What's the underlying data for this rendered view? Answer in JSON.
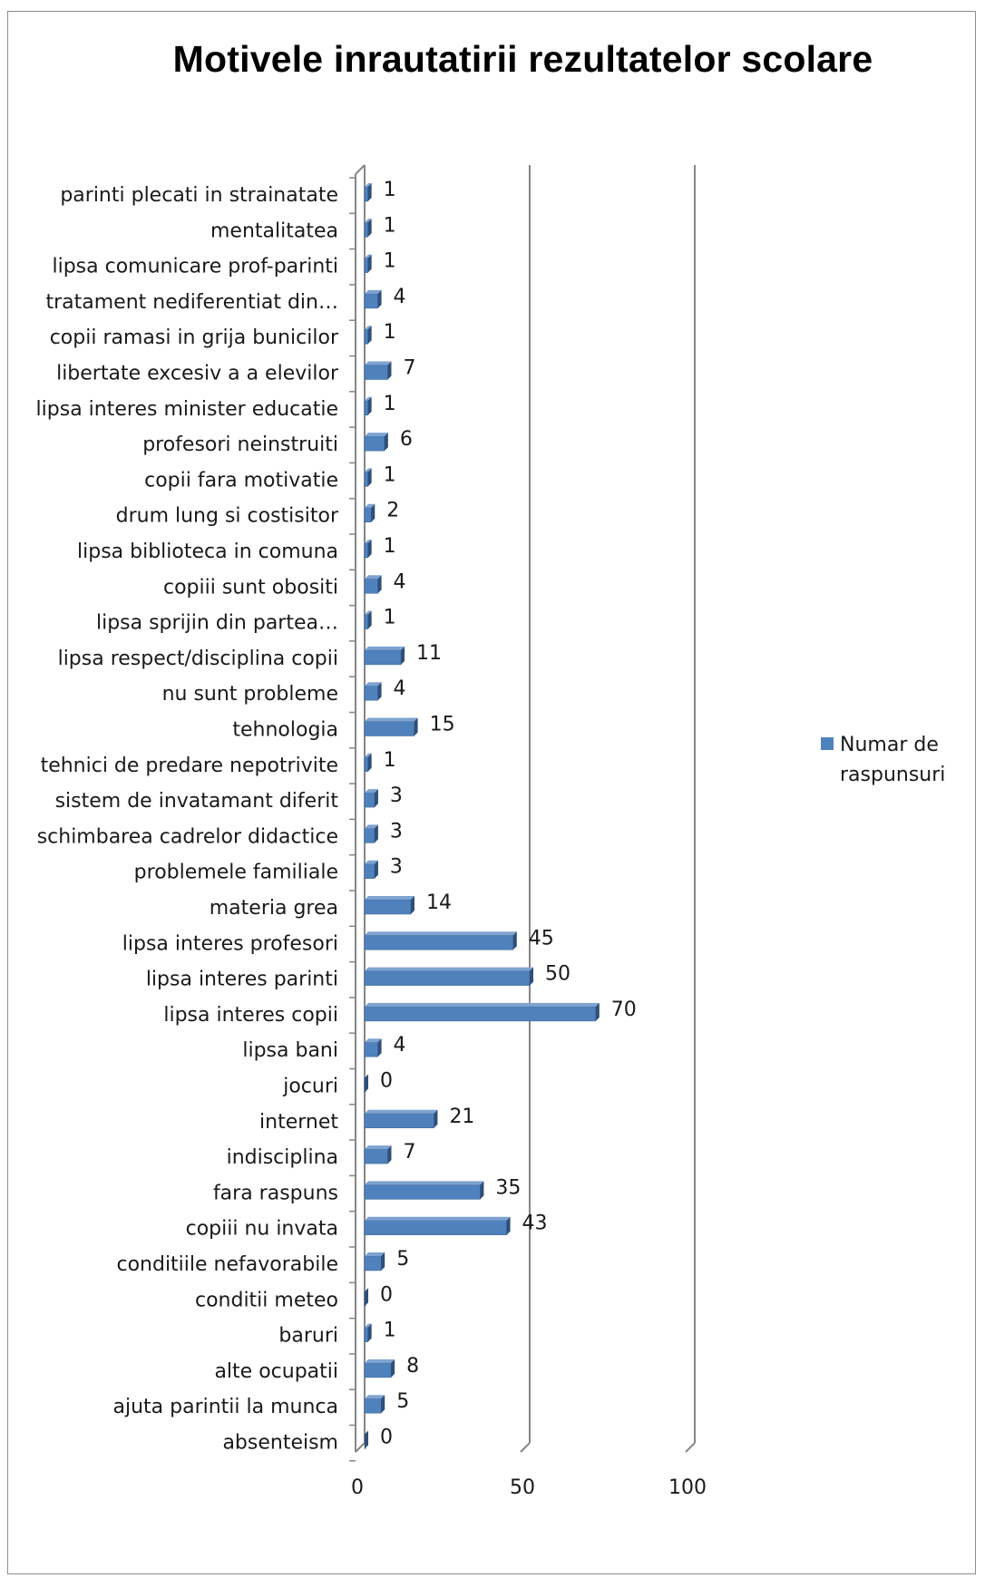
{
  "chart_data": {
    "type": "bar",
    "orientation": "horizontal",
    "title": "Motivele inrautatirii rezultatelor scolare",
    "xlabel": "",
    "ylabel": "",
    "xlim": [
      0,
      100
    ],
    "x_ticks": [
      "0",
      "50",
      "100"
    ],
    "grid": true,
    "legend_position": "right",
    "bar_color": "#4f81bd",
    "categories": [
      "parinti plecati in strainatate",
      "mentalitatea",
      "lipsa comunicare prof-parinti",
      "tratament nediferentiat din…",
      "copii ramasi in grija bunicilor",
      "libertate excesiv a a elevilor",
      "lipsa interes minister educatie",
      "profesori neinstruiti",
      "copii fara motivatie",
      "drum lung si costisitor",
      "lipsa biblioteca in comuna",
      "copiii sunt obositi",
      "lipsa sprijin din partea…",
      "lipsa respect/disciplina copii",
      "nu sunt probleme",
      "tehnologia",
      "tehnici de predare nepotrivite",
      "sistem de invatamant diferit",
      "schimbarea cadrelor didactice",
      "problemele familiale",
      "materia grea",
      "lipsa interes profesori",
      "lipsa interes parinti",
      "lipsa interes copii",
      "lipsa bani",
      "jocuri",
      "internet",
      "indisciplina",
      "fara raspuns",
      "copiii nu invata",
      "conditiile nefavorabile",
      "conditii meteo",
      "baruri",
      "alte ocupatii",
      "ajuta parintii la munca",
      "absenteism"
    ],
    "series": [
      {
        "name": "Numar de raspunsuri",
        "values": [
          1,
          1,
          1,
          4,
          1,
          7,
          1,
          6,
          1,
          2,
          1,
          4,
          1,
          11,
          4,
          15,
          1,
          3,
          3,
          3,
          14,
          45,
          50,
          70,
          4,
          0,
          21,
          7,
          35,
          43,
          5,
          0,
          1,
          8,
          5,
          0
        ]
      }
    ],
    "legend": {
      "lines": [
        "Numar de",
        "raspunsuri"
      ]
    }
  }
}
